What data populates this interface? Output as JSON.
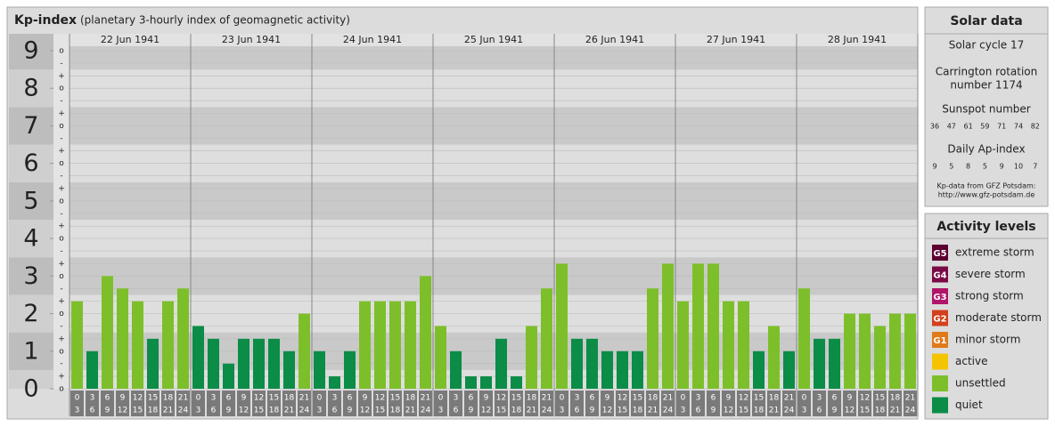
{
  "header": {
    "title": "Kp-index",
    "subtitle": "(planetary 3-hourly index of geomagnetic activity)"
  },
  "chart_data": {
    "type": "bar",
    "ylim": [
      0,
      9.45
    ],
    "yticks": [
      0,
      1,
      2,
      3,
      4,
      5,
      6,
      7,
      8,
      9
    ],
    "subticks": [
      {
        "value": 9,
        "label": "o"
      },
      {
        "value": 8.67,
        "label": "-"
      },
      {
        "value": 8.33,
        "label": "+"
      },
      {
        "value": 8,
        "label": "o"
      },
      {
        "value": 7.67,
        "label": "-"
      },
      {
        "value": 7.33,
        "label": "+"
      },
      {
        "value": 7,
        "label": "o"
      },
      {
        "value": 6.67,
        "label": "-"
      },
      {
        "value": 6.33,
        "label": "+"
      },
      {
        "value": 6,
        "label": "o"
      },
      {
        "value": 5.67,
        "label": "-"
      },
      {
        "value": 5.33,
        "label": "+"
      },
      {
        "value": 5,
        "label": "o"
      },
      {
        "value": 4.67,
        "label": "-"
      },
      {
        "value": 4.33,
        "label": "+"
      },
      {
        "value": 4,
        "label": "o"
      },
      {
        "value": 3.67,
        "label": "-"
      },
      {
        "value": 3.33,
        "label": "+"
      },
      {
        "value": 3,
        "label": "o"
      },
      {
        "value": 2.67,
        "label": "-"
      },
      {
        "value": 2.33,
        "label": "+"
      },
      {
        "value": 2,
        "label": "o"
      },
      {
        "value": 1.67,
        "label": "-"
      },
      {
        "value": 1.33,
        "label": "+"
      },
      {
        "value": 1,
        "label": "o"
      },
      {
        "value": 0.67,
        "label": "-"
      },
      {
        "value": 0.33,
        "label": "+"
      },
      {
        "value": 0,
        "label": "o"
      }
    ],
    "hour_labels": [
      [
        "0",
        "3"
      ],
      [
        "3",
        "6"
      ],
      [
        "6",
        "9"
      ],
      [
        "9",
        "12"
      ],
      [
        "12",
        "15"
      ],
      [
        "15",
        "18"
      ],
      [
        "18",
        "21"
      ],
      [
        "21",
        "24"
      ]
    ],
    "days": [
      {
        "date": "22 Jun 1941",
        "values": [
          2.33,
          1,
          3,
          2.67,
          2.33,
          1.33,
          2.33,
          2.67
        ],
        "colors": [
          "#7dbf2a",
          "#0b8c47",
          "#7dbf2a",
          "#7dbf2a",
          "#7dbf2a",
          "#0b8c47",
          "#7dbf2a",
          "#7dbf2a"
        ]
      },
      {
        "date": "23 Jun 1941",
        "values": [
          1.67,
          1.33,
          0.67,
          1.33,
          1.33,
          1.33,
          1,
          2
        ],
        "colors": [
          "#0b8c47",
          "#0b8c47",
          "#0b8c47",
          "#0b8c47",
          "#0b8c47",
          "#0b8c47",
          "#0b8c47",
          "#7dbf2a"
        ]
      },
      {
        "date": "24 Jun 1941",
        "values": [
          1,
          0.33,
          1,
          2.33,
          2.33,
          2.33,
          2.33,
          3
        ],
        "colors": [
          "#0b8c47",
          "#0b8c47",
          "#0b8c47",
          "#7dbf2a",
          "#7dbf2a",
          "#7dbf2a",
          "#7dbf2a",
          "#7dbf2a"
        ]
      },
      {
        "date": "25 Jun 1941",
        "values": [
          1.67,
          1,
          0.33,
          0.33,
          1.33,
          0.33,
          1.67,
          2.67
        ],
        "colors": [
          "#7dbf2a",
          "#0b8c47",
          "#0b8c47",
          "#0b8c47",
          "#0b8c47",
          "#0b8c47",
          "#7dbf2a",
          "#7dbf2a"
        ]
      },
      {
        "date": "26 Jun 1941",
        "values": [
          3.33,
          1.33,
          1.33,
          1,
          1,
          1,
          2.67,
          3.33
        ],
        "colors": [
          "#7dbf2a",
          "#0b8c47",
          "#0b8c47",
          "#0b8c47",
          "#0b8c47",
          "#0b8c47",
          "#7dbf2a",
          "#7dbf2a"
        ]
      },
      {
        "date": "27 Jun 1941",
        "values": [
          2.33,
          3.33,
          3.33,
          2.33,
          2.33,
          1,
          1.67,
          1
        ],
        "colors": [
          "#7dbf2a",
          "#7dbf2a",
          "#7dbf2a",
          "#7dbf2a",
          "#7dbf2a",
          "#0b8c47",
          "#7dbf2a",
          "#0b8c47"
        ]
      },
      {
        "date": "28 Jun 1941",
        "values": [
          2.67,
          1.33,
          1.33,
          2,
          2,
          1.67,
          2,
          2
        ],
        "colors": [
          "#7dbf2a",
          "#0b8c47",
          "#0b8c47",
          "#7dbf2a",
          "#7dbf2a",
          "#7dbf2a",
          "#7dbf2a",
          "#7dbf2a"
        ]
      }
    ]
  },
  "solar_data": {
    "title": "Solar data",
    "solar_cycle": "Solar cycle 17",
    "carrington": [
      "Carrington rotation",
      "number 1174"
    ],
    "sunspot_title": "Sunspot number",
    "sunspot_numbers": [
      36,
      47,
      61,
      59,
      71,
      74,
      82
    ],
    "ap_title": "Daily Ap-index",
    "ap_values": [
      9,
      5,
      8,
      5,
      9,
      10,
      7
    ],
    "source": [
      "Kp-data from GFZ Potsdam:",
      "http://www.gfz-potsdam.de"
    ]
  },
  "activity_levels": {
    "title": "Activity levels",
    "items": [
      {
        "badge": "G5",
        "label": "extreme storm",
        "color": "#5c0030"
      },
      {
        "badge": "G4",
        "label": "severe storm",
        "color": "#7a0a45"
      },
      {
        "badge": "G3",
        "label": "strong storm",
        "color": "#b0156a"
      },
      {
        "badge": "G2",
        "label": "moderate storm",
        "color": "#d2401c"
      },
      {
        "badge": "G1",
        "label": "minor storm",
        "color": "#e07a1a"
      },
      {
        "label": "active",
        "color": "#f5c400"
      },
      {
        "label": "unsettled",
        "color": "#7dbf2a"
      },
      {
        "label": "quiet",
        "color": "#0b8c47"
      }
    ]
  }
}
